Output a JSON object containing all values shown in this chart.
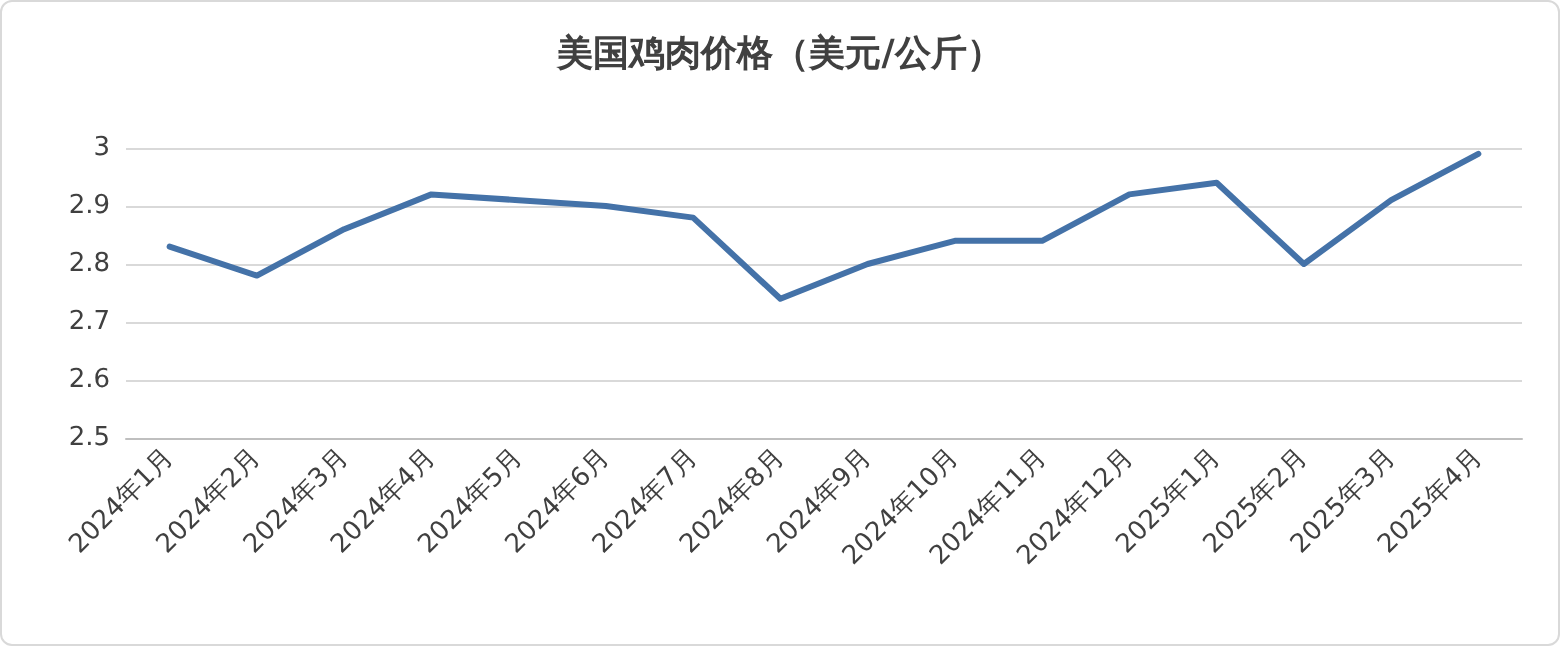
{
  "chart_data": {
    "type": "line",
    "title": "美国鸡肉价格（美元/公斤）",
    "categories": [
      "2024年1月",
      "2024年2月",
      "2024年3月",
      "2024年4月",
      "2024年5月",
      "2024年6月",
      "2024年7月",
      "2024年8月",
      "2024年9月",
      "2024年10月",
      "2024年11月",
      "2024年12月",
      "2025年1月",
      "2025年2月",
      "2025年3月",
      "2025年4月"
    ],
    "series": [
      {
        "color": "#4472a8",
        "values": [
          2.83,
          2.78,
          2.86,
          2.92,
          2.91,
          2.9,
          2.88,
          2.74,
          2.8,
          2.84,
          2.84,
          2.92,
          2.94,
          2.8,
          2.91,
          2.99
        ]
      }
    ],
    "ylim": [
      2.5,
      3
    ],
    "yticks": [
      2.5,
      2.6,
      2.7,
      2.8,
      2.9,
      3
    ],
    "grid": "y",
    "marker": "none",
    "line_style": "solid"
  }
}
